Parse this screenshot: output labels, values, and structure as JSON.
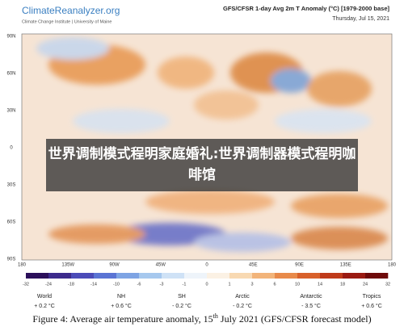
{
  "header": {
    "logo": "ClimateReanalyzer.org",
    "logo_subtitle": "Climate Change Institute | University of Maine",
    "title": "GFS/CFSR 1-day Avg 2m T Anomaly (°C) [1979-2000 base]",
    "date": "Thursday, Jul 15, 2021"
  },
  "map": {
    "lat_labels": [
      "90N",
      "60N",
      "30N",
      "0",
      "30S",
      "60S",
      "90S"
    ],
    "lon_labels": [
      "180",
      "135W",
      "90W",
      "45W",
      "0",
      "45E",
      "90E",
      "135E",
      "180"
    ]
  },
  "colorbar": {
    "labels": [
      "-32",
      "-24",
      "-18",
      "-14",
      "-10",
      "-6",
      "-3",
      "-1",
      "0",
      "1",
      "3",
      "6",
      "10",
      "14",
      "18",
      "24",
      "32"
    ]
  },
  "regions": [
    {
      "name": "World",
      "value": "+ 0.2 °C"
    },
    {
      "name": "NH",
      "value": "+ 0.6 °C"
    },
    {
      "name": "SH",
      "value": "- 0.2 °C"
    },
    {
      "name": "Arctic",
      "value": "- 0.2 °C"
    },
    {
      "name": "Antarctic",
      "value": "- 3.5 °C"
    },
    {
      "name": "Tropics",
      "value": "+ 0.6 °C"
    }
  ],
  "caption": {
    "before": "Figure 4: Average air temperature anomaly, 15",
    "sup": "th",
    "after": " July 2021 (GFS/CFSR forecast model)"
  },
  "overlay": {
    "text": "世界调制模式程明家庭婚礼:世界调制器模式程明咖啡馆"
  }
}
